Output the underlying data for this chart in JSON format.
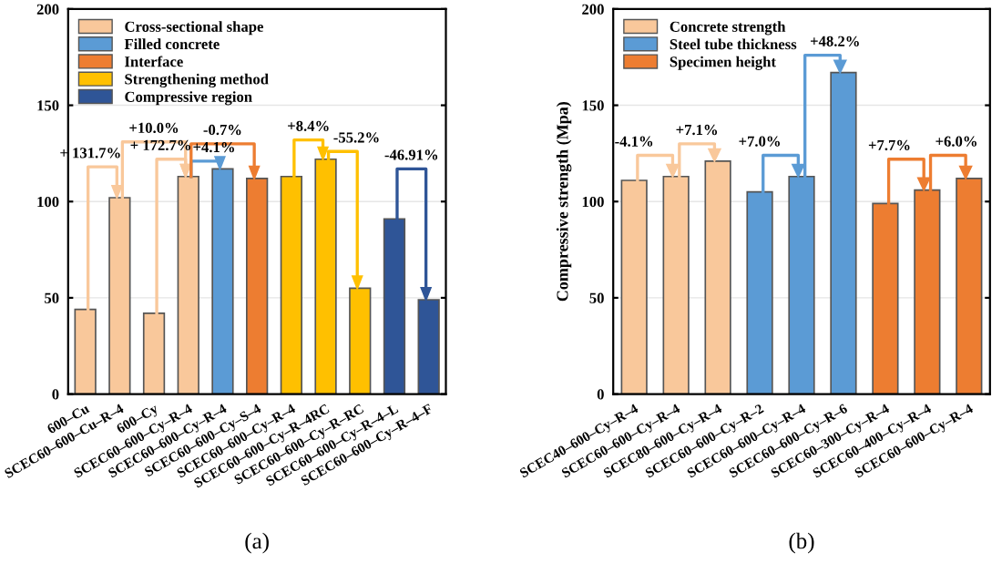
{
  "chart_data": [
    {
      "type": "bar",
      "title": "(a)",
      "categories": [
        "600–Cu",
        "SCEC60–600–Cu–R–4",
        "600–Cy",
        "SCEC60–600–Cy–R–4",
        "SCEC60–600–Cy–R–4",
        "SCEC60–600–Cy–S–4",
        "SCEC60–600–Cy–R–4",
        "SCEC60–600–Cy–R–4RC",
        "SCEC60–600–Cy–R–RC",
        "SCEC60–600–Cy–R–4–L",
        "SCEC60–600–Cy–R–4–F"
      ],
      "series": [
        {
          "name": "Cross-sectional shape",
          "color": "#f9c89b",
          "values": [
            44,
            102,
            42,
            113,
            null,
            null,
            null,
            null,
            null,
            null,
            null
          ]
        },
        {
          "name": "Filled concrete",
          "color": "#5b9bd5",
          "values": [
            null,
            null,
            null,
            null,
            117,
            null,
            null,
            null,
            null,
            null,
            null
          ]
        },
        {
          "name": "Interface",
          "color": "#ed7d31",
          "values": [
            null,
            null,
            null,
            null,
            null,
            112,
            null,
            null,
            null,
            null,
            null
          ]
        },
        {
          "name": "Strengthening method",
          "color": "#ffc000",
          "values": [
            null,
            null,
            null,
            null,
            null,
            null,
            113,
            122,
            55,
            null,
            null
          ]
        },
        {
          "name": "Compressive region",
          "color": "#2f5597",
          "values": [
            null,
            null,
            null,
            null,
            null,
            null,
            null,
            null,
            null,
            91,
            49
          ]
        }
      ],
      "ylim": [
        0,
        200
      ],
      "yticks": [
        0,
        50,
        100,
        150,
        200
      ],
      "grid": "y",
      "legend": "top left",
      "annotations": [
        {
          "text": "+ 131.7%",
          "x": "SCEC60–600–Cu–R–4",
          "y": 102
        },
        {
          "text": "+ 172.7%",
          "x": "SCEC60–600–Cy–R–4",
          "y": 113
        },
        {
          "text": "+10.0%",
          "x": "SCEC60–600–Cy–R–4",
          "y": 113
        },
        {
          "text": "+4.1%",
          "x": "SCEC60–600–Cy–R–4",
          "y": 117
        },
        "-0.7%",
        {
          "text": "+8.4%",
          "x": "SCEC60–600–Cy–R–4RC",
          "y": 122
        },
        {
          "text": "-55.2%",
          "x": "SCEC60–600–Cy–R–RC",
          "y": 55
        },
        "-46.91%"
      ]
    },
    {
      "type": "bar",
      "title": "(b)",
      "ylabel": "Compressive strength (Mpa)",
      "categories": [
        "SCEC40–600–Cy–R–4",
        "SCEC60–600–Cy–R–4",
        "SCEC80–600–Cy–R–4",
        "SCEC60–600–Cy–R–2",
        "SCEC60–600–Cy–R–4",
        "SCEC60–600–Cy–R–6",
        "SCEC60–300–Cy–R–4",
        "SCEC60–400–Cy–R–4",
        "SCEC60–600–Cy–R–4"
      ],
      "series": [
        {
          "name": "Concrete strength",
          "color": "#f9c89b",
          "values": [
            111,
            113,
            121,
            null,
            null,
            null,
            null,
            null,
            null
          ]
        },
        {
          "name": "Steel tube thickness",
          "color": "#5b9bd5",
          "values": [
            null,
            null,
            null,
            105,
            113,
            167,
            null,
            null,
            null
          ]
        },
        {
          "name": "Specimen height",
          "color": "#ed7d31",
          "values": [
            null,
            null,
            null,
            null,
            null,
            null,
            99,
            106,
            112
          ]
        }
      ],
      "ylim": [
        0,
        200
      ],
      "yticks": [
        0,
        50,
        100,
        150,
        200
      ],
      "grid": "y",
      "legend": "top left",
      "annotations": [
        {
          "text": "-4.1%",
          "x": "SCEC60–600–Cy–R–4",
          "y": 113
        },
        {
          "text": "+7.1%",
          "x": "SCEC80–600–Cy–R–4",
          "y": 121
        },
        "+7.0%",
        {
          "text": "+48.2%",
          "x": "SCEC60–600–Cy–R–6",
          "y": 167
        },
        {
          "text": "+7.7%",
          "x": "SCEC60–400–Cy–R–4",
          "y": 106
        },
        "+6.0%"
      ]
    }
  ]
}
